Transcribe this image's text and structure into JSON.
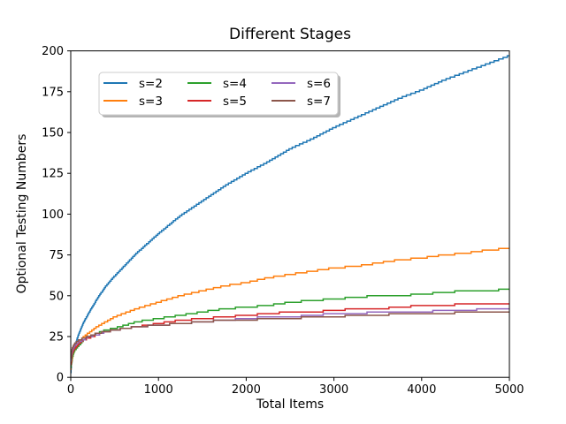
{
  "chart_data": {
    "type": "line",
    "title": "Different Stages",
    "xlabel": "Total Items",
    "ylabel": "Optional Testing Numbers",
    "xlim": [
      0,
      5000
    ],
    "ylim": [
      0,
      200
    ],
    "x_ticks": [
      0,
      1000,
      2000,
      3000,
      4000,
      5000
    ],
    "y_ticks": [
      0,
      25,
      50,
      75,
      100,
      125,
      150,
      175,
      200
    ],
    "grid": false,
    "line_style": "steps",
    "legend": {
      "position": "upper-left",
      "columns": 2,
      "rows_per_column": 2,
      "shadow": true,
      "border_color": "#cccccc",
      "background": "#ffffff"
    },
    "x": [
      1,
      5,
      10,
      25,
      50,
      100,
      150,
      200,
      300,
      400,
      500,
      750,
      1000,
      1250,
      1500,
      1750,
      2000,
      2250,
      2500,
      2750,
      3000,
      3250,
      3500,
      3750,
      4000,
      4250,
      4500,
      4750,
      5000
    ],
    "series": [
      {
        "name": "s=2",
        "color": "#1f77b4",
        "values": [
          3,
          6,
          9,
          14,
          20,
          28,
          34,
          39,
          48,
          56,
          62,
          76,
          88,
          99,
          108,
          117,
          125,
          132,
          140,
          146,
          153,
          159,
          165,
          171,
          176,
          182,
          187,
          192,
          197
        ]
      },
      {
        "name": "s=3",
        "color": "#ff7f0e",
        "values": [
          5,
          8,
          10,
          14,
          17,
          22,
          25,
          27,
          31,
          34,
          37,
          42,
          46,
          50,
          53,
          56,
          58,
          61,
          63,
          65,
          67,
          68,
          70,
          72,
          73,
          75,
          76,
          78,
          79
        ]
      },
      {
        "name": "s=4",
        "color": "#2ca02c",
        "values": [
          6,
          10,
          11,
          14,
          17,
          20,
          23,
          24,
          27,
          29,
          30,
          34,
          36,
          38,
          40,
          42,
          43,
          44,
          46,
          47,
          48,
          49,
          50,
          50,
          51,
          52,
          53,
          53,
          54
        ]
      },
      {
        "name": "s=5",
        "color": "#d62728",
        "values": [
          8,
          11,
          13,
          16,
          18,
          21,
          23,
          24,
          26,
          28,
          29,
          31,
          33,
          35,
          36,
          37,
          38,
          39,
          40,
          40,
          41,
          42,
          42,
          43,
          44,
          44,
          45,
          45,
          45
        ]
      },
      {
        "name": "s=6",
        "color": "#9467bd",
        "values": [
          10,
          13,
          15,
          17,
          20,
          22,
          23,
          25,
          26,
          28,
          29,
          31,
          32,
          33,
          34,
          35,
          36,
          37,
          37,
          38,
          39,
          39,
          40,
          40,
          40,
          41,
          41,
          42,
          42
        ]
      },
      {
        "name": "s=7",
        "color": "#8c564b",
        "values": [
          12,
          15,
          16,
          19,
          21,
          23,
          24,
          25,
          27,
          28,
          29,
          31,
          32,
          33,
          34,
          35,
          35,
          36,
          36,
          37,
          37,
          38,
          38,
          39,
          39,
          39,
          40,
          40,
          40
        ]
      }
    ]
  }
}
